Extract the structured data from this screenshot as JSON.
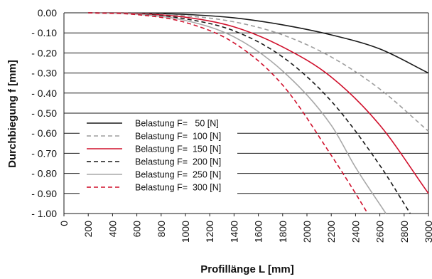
{
  "chart_data": {
    "type": "line",
    "xlabel": "Profillänge L  [mm]",
    "ylabel": "Durchbiegung f [mm]",
    "xlim": [
      0,
      3000
    ],
    "ylim": [
      -1.0,
      0.0
    ],
    "grid": "horizontal",
    "legend_position": "bottom-left",
    "x_ticks": [
      {
        "value": 0,
        "label": "0"
      },
      {
        "value": 200,
        "label": "200"
      },
      {
        "value": 400,
        "label": "400"
      },
      {
        "value": 600,
        "label": "600"
      },
      {
        "value": 800,
        "label": "800"
      },
      {
        "value": 1000,
        "label": "1000"
      },
      {
        "value": 1200,
        "label": "1200"
      },
      {
        "value": 1400,
        "label": "1400"
      },
      {
        "value": 1600,
        "label": "1600"
      },
      {
        "value": 1800,
        "label": "1800"
      },
      {
        "value": 2000,
        "label": "2000"
      },
      {
        "value": 2200,
        "label": "2200"
      },
      {
        "value": 2400,
        "label": "2400"
      },
      {
        "value": 2600,
        "label": "2600"
      },
      {
        "value": 2800,
        "label": "2800"
      },
      {
        "value": 3000,
        "label": "3000"
      }
    ],
    "y_ticks": [
      {
        "value": 0.0,
        "label": "0.00"
      },
      {
        "value": -0.1,
        "label": "- 0.10"
      },
      {
        "value": -0.2,
        "label": "- 0.20"
      },
      {
        "value": -0.3,
        "label": "- 0.30"
      },
      {
        "value": -0.4,
        "label": "- 0.40"
      },
      {
        "value": -0.5,
        "label": "- 0.50"
      },
      {
        "value": -0.6,
        "label": "- 0.60"
      },
      {
        "value": -0.7,
        "label": "- 0.70"
      },
      {
        "value": -0.8,
        "label": "- 0.80"
      },
      {
        "value": -0.9,
        "label": "- 0.90"
      },
      {
        "value": -1.0,
        "label": "- 1.00"
      }
    ],
    "series": [
      {
        "name": "Belastung F=   50 [N]",
        "color": "#1a1a1a",
        "dash": "solid",
        "x": [
          200,
          600,
          1000,
          1400,
          1800,
          2200,
          2600,
          3000
        ],
        "y": [
          0.0,
          -0.001,
          -0.008,
          -0.025,
          -0.06,
          -0.11,
          -0.18,
          -0.3
        ]
      },
      {
        "name": "Belastung F=  100 [N]",
        "color": "#9e9e9e",
        "dash": "dashed",
        "x": [
          200,
          600,
          1000,
          1400,
          1800,
          2200,
          2600,
          3000
        ],
        "y": [
          0.0,
          -0.003,
          -0.015,
          -0.045,
          -0.11,
          -0.22,
          -0.38,
          -0.59
        ]
      },
      {
        "name": "Belastung F=  150 [N]",
        "color": "#d0102c",
        "dash": "solid",
        "x": [
          200,
          600,
          1000,
          1400,
          1800,
          2200,
          2600,
          3000
        ],
        "y": [
          0.0,
          -0.004,
          -0.022,
          -0.07,
          -0.17,
          -0.32,
          -0.56,
          -0.9
        ]
      },
      {
        "name": "Belastung F=  200 [N]",
        "color": "#1a1a1a",
        "dash": "dashed",
        "x": [
          200,
          600,
          1000,
          1400,
          1800,
          2200,
          2600,
          2850
        ],
        "y": [
          0.0,
          -0.006,
          -0.03,
          -0.09,
          -0.22,
          -0.44,
          -0.76,
          -1.0
        ]
      },
      {
        "name": "Belastung F=  250 [N]",
        "color": "#a8a8a8",
        "dash": "solid",
        "x": [
          200,
          600,
          1000,
          1400,
          1800,
          2200,
          2400,
          2650
        ],
        "y": [
          0.0,
          -0.007,
          -0.038,
          -0.12,
          -0.29,
          -0.56,
          -0.77,
          -1.0
        ]
      },
      {
        "name": "Belastung F=  300 [N]",
        "color": "#d0102c",
        "dash": "dashed",
        "x": [
          200,
          600,
          1000,
          1400,
          1800,
          2200,
          2400,
          2500
        ],
        "y": [
          0.0,
          -0.009,
          -0.048,
          -0.15,
          -0.36,
          -0.71,
          -0.9,
          -1.0
        ]
      }
    ]
  }
}
